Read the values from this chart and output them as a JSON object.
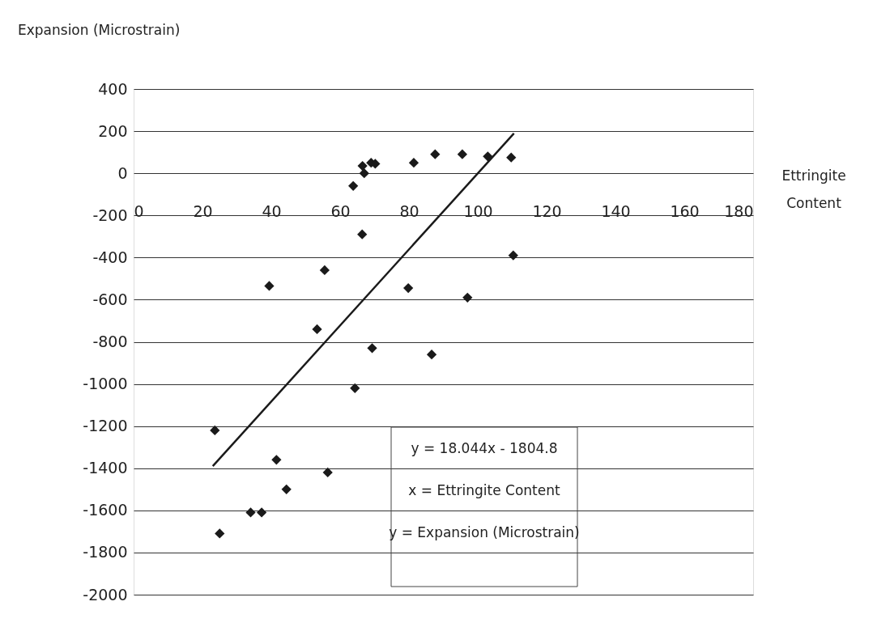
{
  "chart_data": {
    "type": "scatter",
    "xlabel": "Ettringite Content",
    "ylabel": "Expansion (Microstrain)",
    "xlim": [
      0,
      180
    ],
    "xticks": [
      0,
      20,
      40,
      60,
      80,
      100,
      120,
      140,
      160,
      180
    ],
    "ylim": [
      -2000,
      400
    ],
    "yticks": [
      -2000,
      -1800,
      -1600,
      -1400,
      -1200,
      -1000,
      -800,
      -600,
      -400,
      -200,
      0,
      200,
      400
    ],
    "grid": "y",
    "legend": false,
    "line_style": "solid",
    "annotations": [
      "y = 18.044x - 1804.8",
      "x = Ettringite Content",
      "y = Expansion (Microstrain)"
    ],
    "series": [
      {
        "marker": "diamond",
        "color": "#1a1a1a",
        "x": [
          23.6,
          25,
          34,
          37.2,
          41.5,
          44.4,
          56.4,
          64.3,
          39.4,
          55.5,
          53.3,
          69.3,
          86.6,
          66.4,
          79.8,
          97,
          110.3,
          63.8,
          67,
          66.5,
          69,
          70.2,
          81.4,
          87.6,
          95.5,
          102.9,
          109.7
        ],
        "values": [
          -1220,
          -1710,
          -1610,
          -1610,
          -1360,
          -1500,
          -1420,
          -1020,
          -535,
          -460,
          -740,
          -830,
          -860,
          -290,
          -545,
          -590,
          -390,
          -60,
          0,
          35,
          50,
          45,
          50,
          90,
          90,
          80,
          75
        ]
      },
      {
        "type": "line",
        "color": "#1a1a1a",
        "x": [
          23,
          110.5
        ],
        "values": [
          -1390,
          189
        ]
      }
    ]
  }
}
